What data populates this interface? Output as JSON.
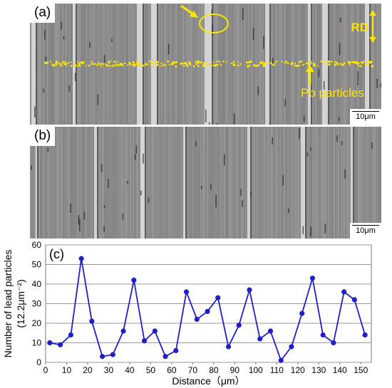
{
  "figure": {
    "panel_a": {
      "tag": "(a)",
      "scale_bar": "10μm",
      "rd_label": "RD",
      "pb_label": "Pb particles"
    },
    "panel_b": {
      "tag": "(b)",
      "scale_bar": "10μm"
    },
    "panel_c": {
      "tag": "(c)"
    }
  },
  "colors": {
    "annotation_yellow": "#ffe600",
    "series_blue": "#1f1fc8",
    "grid_gray": "#999999"
  },
  "chart_data": {
    "type": "line",
    "title": "",
    "xlabel": "Distance（μm）",
    "ylabel": "Number of lead particles",
    "ylabel_unit": "(12.2μm⁻²)",
    "xlim": [
      0,
      155
    ],
    "ylim": [
      0,
      60
    ],
    "xticks": [
      0,
      10,
      20,
      30,
      40,
      50,
      60,
      70,
      80,
      90,
      100,
      110,
      120,
      130,
      140,
      150
    ],
    "yticks": [
      0,
      10,
      20,
      30,
      40,
      50,
      60
    ],
    "grid": "horizontal",
    "series": [
      {
        "x": [
          2,
          7,
          12,
          17,
          22,
          27,
          32,
          37,
          42,
          47,
          52,
          57,
          62,
          67,
          72,
          77,
          82,
          87,
          92,
          97,
          102,
          107,
          112,
          117,
          122,
          127,
          132,
          137,
          142,
          147,
          152
        ],
        "values": [
          10,
          9,
          14,
          53,
          21,
          3,
          4,
          16,
          42,
          11,
          16,
          3,
          6,
          36,
          22,
          26,
          33,
          8,
          19,
          37,
          12,
          16,
          1,
          8,
          25,
          43,
          14,
          10,
          36,
          32,
          14
        ]
      }
    ]
  }
}
